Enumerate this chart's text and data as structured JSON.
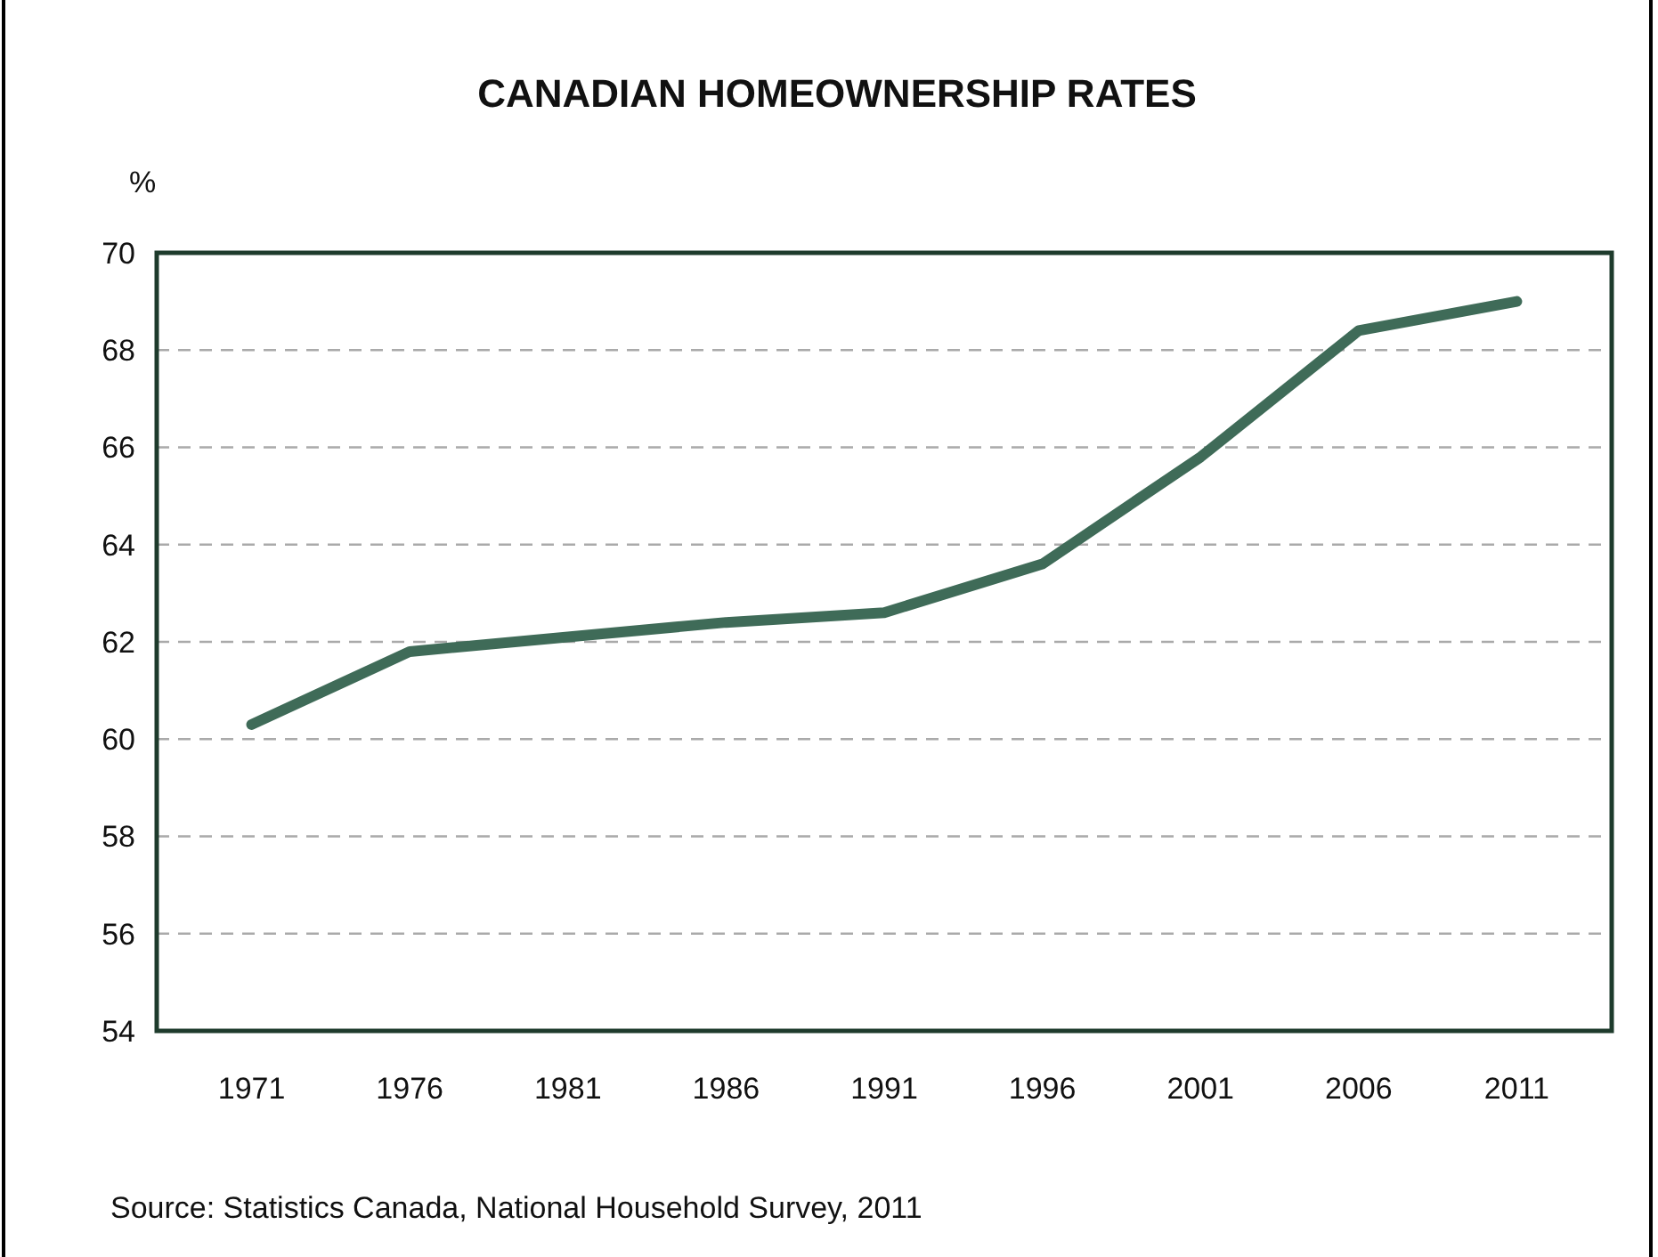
{
  "chart_data": {
    "type": "line",
    "title": "CANADIAN HOMEOWNERSHIP RATES",
    "ylabel": "%",
    "categories": [
      "1971",
      "1976",
      "1981",
      "1986",
      "1991",
      "1996",
      "2001",
      "2006",
      "2011"
    ],
    "series": [
      {
        "color": "#3f6b58",
        "values": [
          60.3,
          61.8,
          62.1,
          62.4,
          62.6,
          63.6,
          65.8,
          68.4,
          69.0
        ]
      }
    ],
    "ylim": [
      54,
      70
    ],
    "yticks": [
      54,
      56,
      58,
      60,
      62,
      64,
      66,
      68,
      70
    ],
    "grid": "y",
    "line_style": "solid",
    "annotations": [
      "Source: Statistics Canada, National Household Survey, 2011"
    ]
  }
}
